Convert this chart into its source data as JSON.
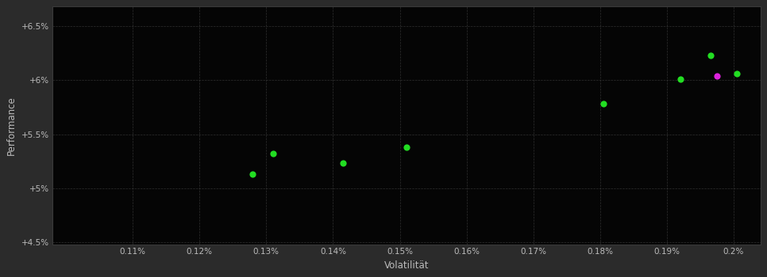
{
  "background_color": "#2b2b2b",
  "plot_bg_color": "#050505",
  "grid_color": "#3a3a3a",
  "text_color": "#bbbbbb",
  "xlabel": "Volatilität",
  "ylabel": "Performance",
  "xlim": [
    0.00098,
    0.00204
  ],
  "ylim": [
    0.0448,
    0.0668
  ],
  "xticks": [
    0.0011,
    0.0012,
    0.0013,
    0.0014,
    0.0015,
    0.0016,
    0.0017,
    0.0018,
    0.0019,
    0.002
  ],
  "xtick_labels": [
    "0.11%",
    "0.12%",
    "0.13%",
    "0.14%",
    "0.15%",
    "0.16%",
    "0.17%",
    "0.18%",
    "0.19%",
    "0.2%"
  ],
  "yticks": [
    0.045,
    0.05,
    0.055,
    0.06,
    0.065
  ],
  "ytick_labels": [
    "+4.5%",
    "+5%",
    "+5.5%",
    "+6%",
    "+6.5%"
  ],
  "green_points": [
    [
      0.00128,
      0.0513
    ],
    [
      0.00131,
      0.0532
    ],
    [
      0.001415,
      0.0523
    ],
    [
      0.00151,
      0.0538
    ],
    [
      0.001805,
      0.0578
    ],
    [
      0.00192,
      0.0601
    ],
    [
      0.001965,
      0.0623
    ],
    [
      0.002005,
      0.0606
    ]
  ],
  "magenta_points": [
    [
      0.001975,
      0.0604
    ]
  ],
  "point_size": 35
}
